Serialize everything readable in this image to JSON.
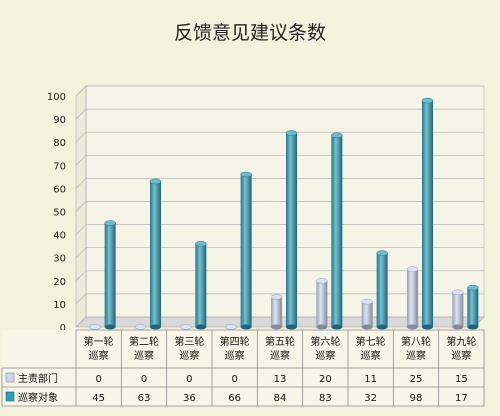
{
  "chart_data": {
    "type": "bar",
    "title": "反馈意见建议条数",
    "categories": [
      [
        "第一轮",
        "巡察"
      ],
      [
        "第二轮",
        "巡察"
      ],
      [
        "第三轮",
        "巡察"
      ],
      [
        "第四轮",
        "巡察"
      ],
      [
        "第五轮",
        "巡察"
      ],
      [
        "第六轮",
        "巡察"
      ],
      [
        "第七轮",
        "巡察"
      ],
      [
        "第八轮",
        "巡察"
      ],
      [
        "第九轮",
        "巡察"
      ]
    ],
    "series": [
      {
        "name": "主责部门",
        "values": [
          0,
          0,
          0,
          0,
          13,
          20,
          11,
          25,
          15
        ],
        "color": "#c9d6ee"
      },
      {
        "name": "巡察对象",
        "values": [
          45,
          63,
          36,
          66,
          84,
          83,
          32,
          98,
          17
        ],
        "color": "#2e9db8"
      }
    ],
    "ylim": [
      0,
      100
    ],
    "yticks": [
      0,
      10,
      20,
      30,
      40,
      50,
      60,
      70,
      80,
      90,
      100
    ],
    "grid": true,
    "legend": "data-table"
  }
}
